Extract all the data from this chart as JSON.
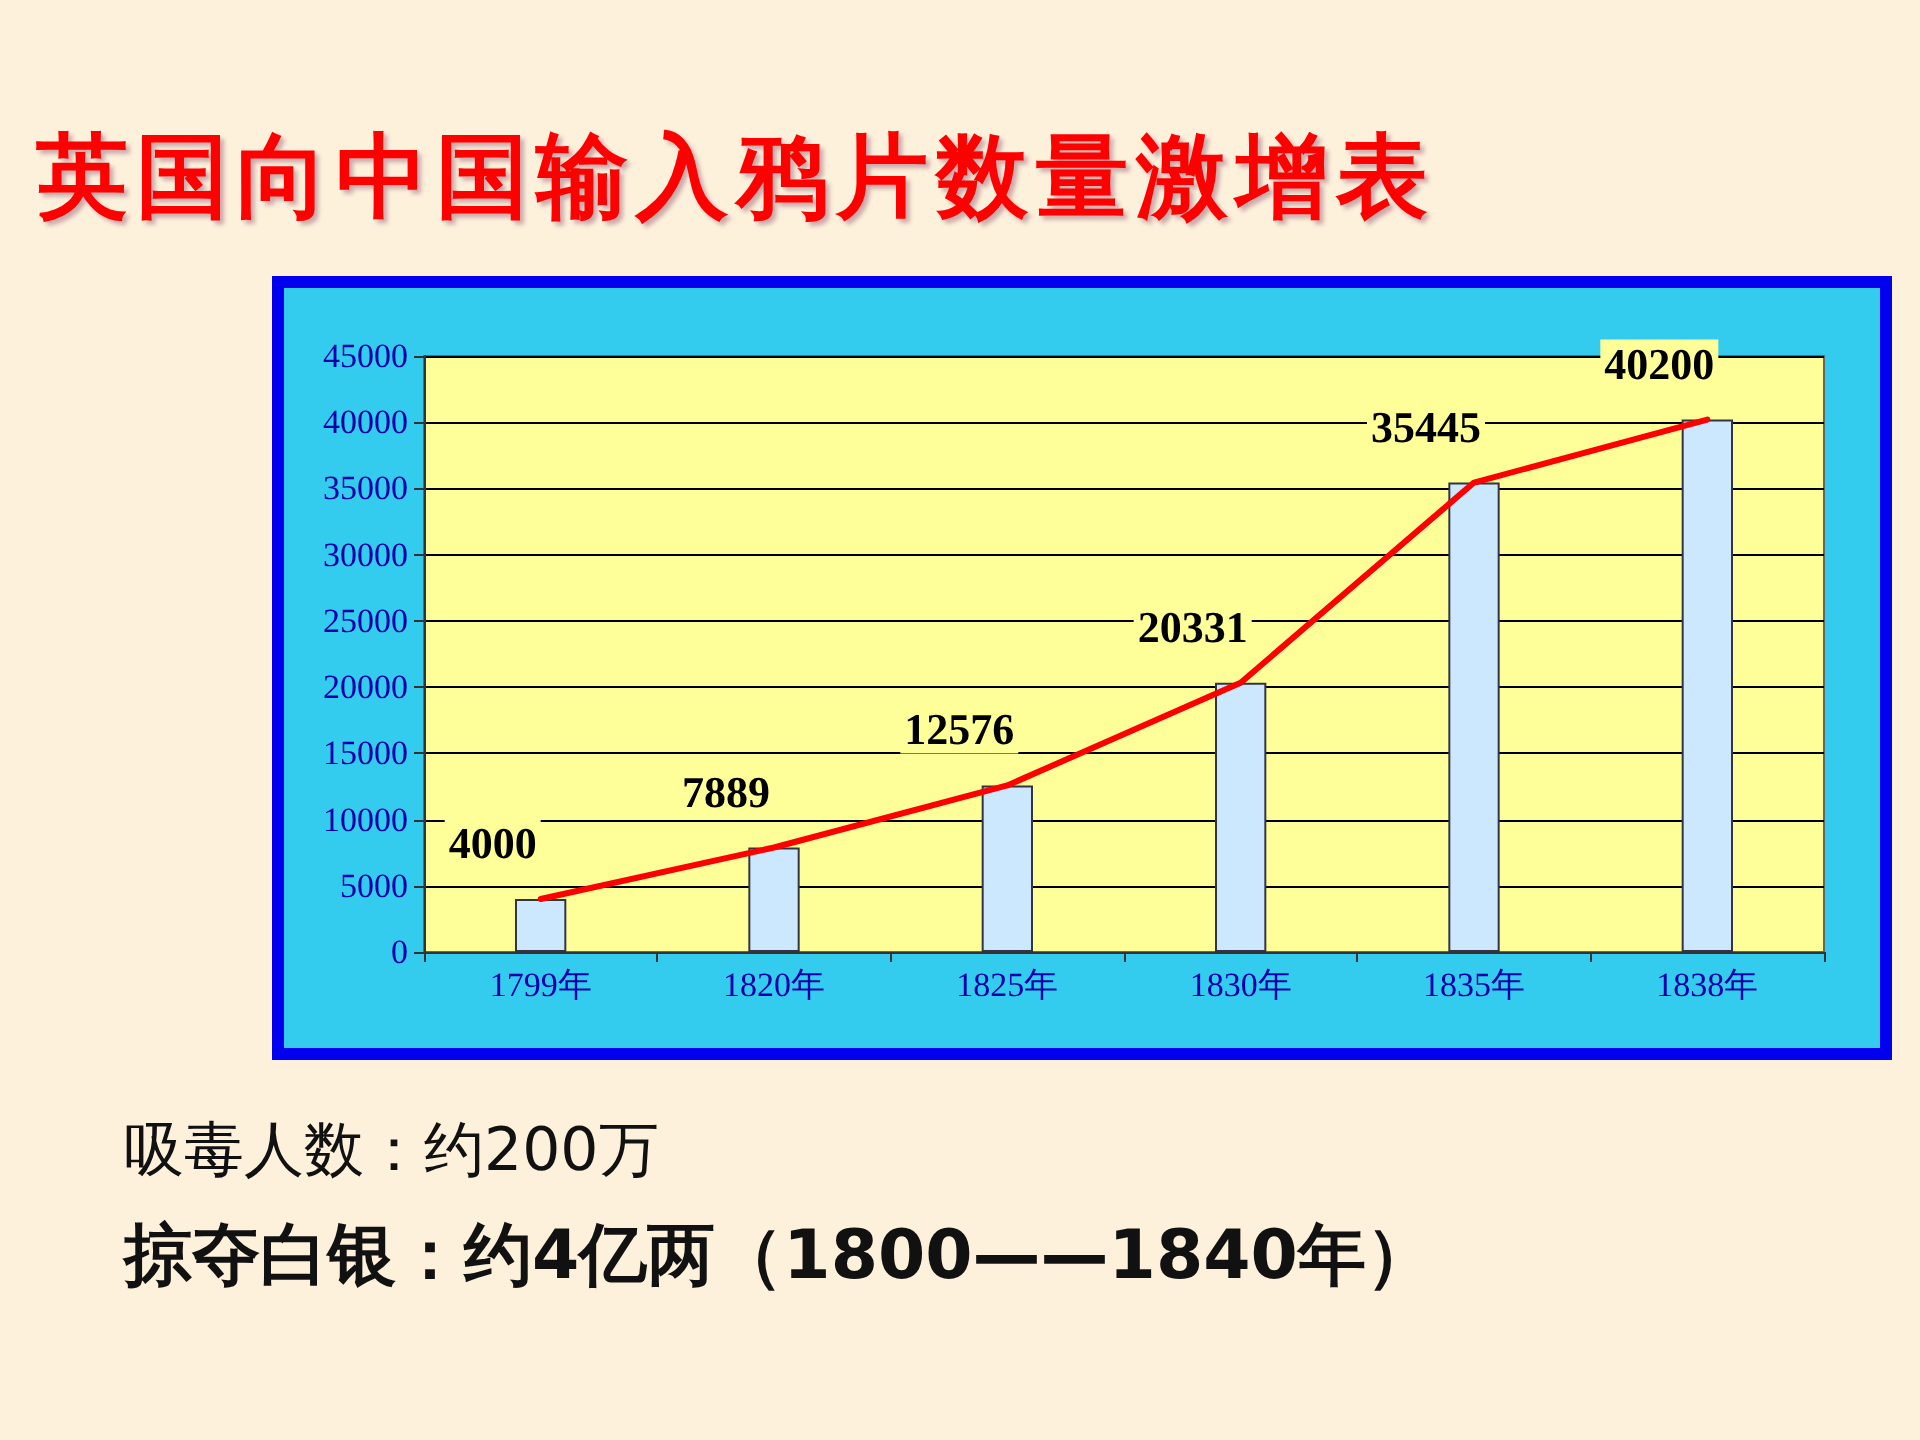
{
  "chart_data": {
    "type": "bar",
    "title": "英国向中国输入鸦片数量激增表",
    "categories": [
      "1799年",
      "1820年",
      "1825年",
      "1830年",
      "1835年",
      "1838年"
    ],
    "series": [
      {
        "color": "#cce8ff",
        "values": [
          4000,
          7889,
          12576,
          20331,
          35445,
          40200
        ]
      },
      {
        "type": "line",
        "color": "#ff0000",
        "values": [
          4000,
          7889,
          12576,
          20331,
          35445,
          40200
        ],
        "value_labels": [
          "4000",
          "7889",
          "12576",
          "20331",
          "35445",
          "40200"
        ]
      }
    ],
    "ylim": [
      0,
      45000
    ],
    "yticks": [
      0,
      5000,
      10000,
      15000,
      20000,
      25000,
      30000,
      35000,
      40000,
      45000
    ],
    "grid": "y",
    "marker": "none",
    "line_style": "solid",
    "annotations": [
      "吸毒人数：约200万",
      "掠夺白银：约4亿两（1800——1840年）"
    ]
  }
}
